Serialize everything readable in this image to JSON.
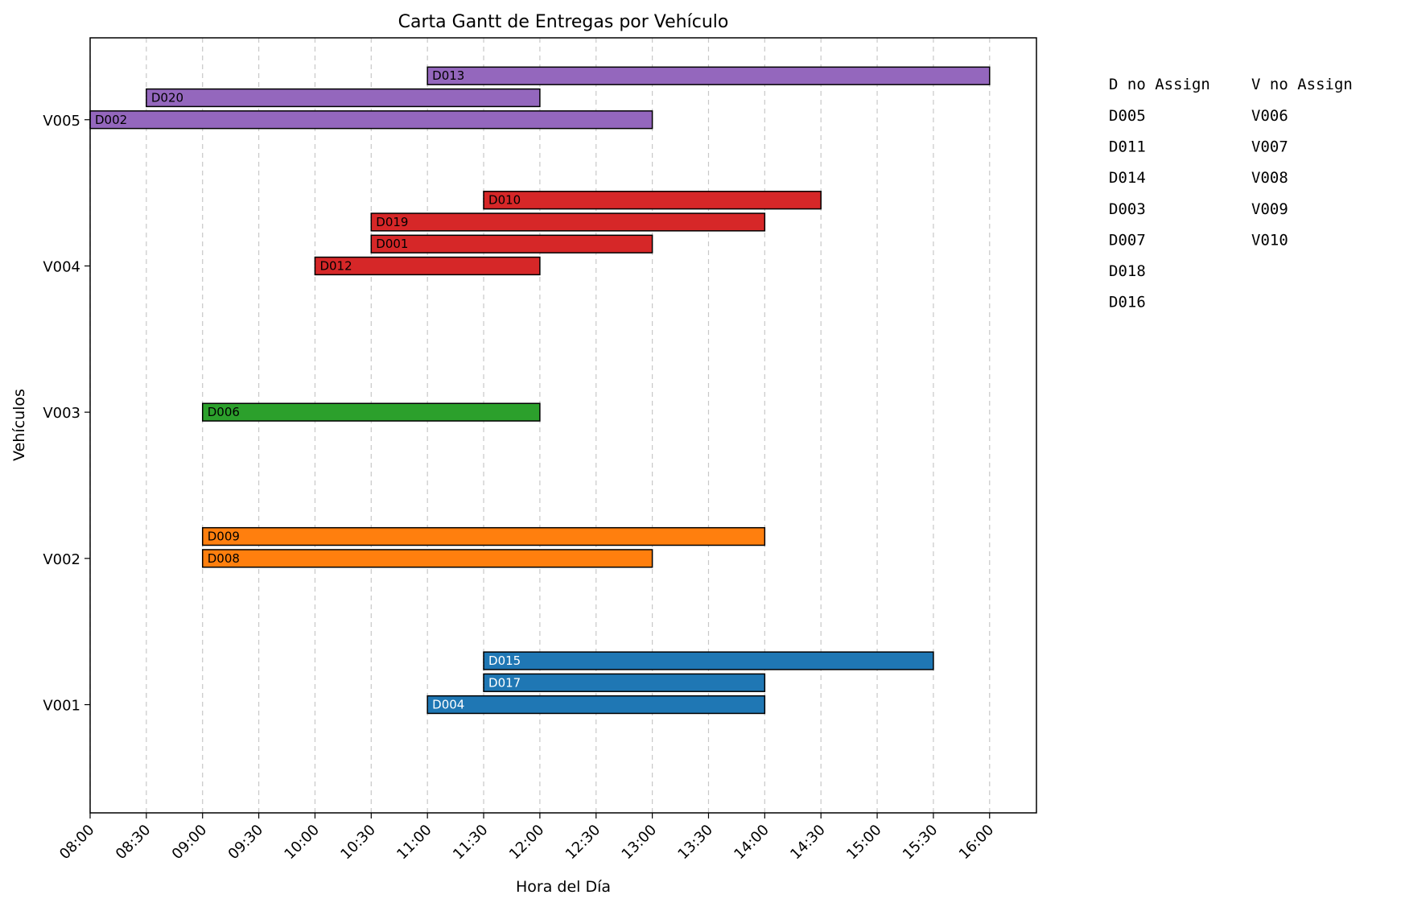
{
  "chart_data": {
    "type": "gantt",
    "title": "Carta Gantt de Entregas por Vehículo",
    "xlabel": "Hora del Día",
    "ylabel": "Vehículos",
    "x_ticks": [
      "08:00",
      "08:30",
      "09:00",
      "09:30",
      "10:00",
      "10:30",
      "11:00",
      "11:30",
      "12:00",
      "12:30",
      "13:00",
      "13:30",
      "14:00",
      "14:30",
      "15:00",
      "15:30",
      "16:00"
    ],
    "x_range": [
      "08:00",
      "16:25"
    ],
    "grid": "x-dashed",
    "vehicles": [
      {
        "name": "V001",
        "color": "#1f77b4",
        "label_color": "#ffffff",
        "deliveries": [
          {
            "id": "D004",
            "start": "11:00",
            "end": "14:00",
            "slot": 0
          },
          {
            "id": "D017",
            "start": "11:30",
            "end": "14:00",
            "slot": 1
          },
          {
            "id": "D015",
            "start": "11:30",
            "end": "15:30",
            "slot": 2
          }
        ]
      },
      {
        "name": "V002",
        "color": "#ff7f0e",
        "label_color": "#000000",
        "deliveries": [
          {
            "id": "D008",
            "start": "09:00",
            "end": "13:00",
            "slot": 0
          },
          {
            "id": "D009",
            "start": "09:00",
            "end": "14:00",
            "slot": 1
          }
        ]
      },
      {
        "name": "V003",
        "color": "#2ca02c",
        "label_color": "#000000",
        "deliveries": [
          {
            "id": "D006",
            "start": "09:00",
            "end": "12:00",
            "slot": 0
          }
        ]
      },
      {
        "name": "V004",
        "color": "#d62728",
        "label_color": "#000000",
        "deliveries": [
          {
            "id": "D012",
            "start": "10:00",
            "end": "12:00",
            "slot": 0
          },
          {
            "id": "D001",
            "start": "10:30",
            "end": "13:00",
            "slot": 1
          },
          {
            "id": "D019",
            "start": "10:30",
            "end": "14:00",
            "slot": 2
          },
          {
            "id": "D010",
            "start": "11:30",
            "end": "14:30",
            "slot": 3
          }
        ]
      },
      {
        "name": "V005",
        "color": "#9467bd",
        "label_color": "#000000",
        "deliveries": [
          {
            "id": "D002",
            "start": "08:00",
            "end": "13:00",
            "slot": 0
          },
          {
            "id": "D020",
            "start": "08:30",
            "end": "12:00",
            "slot": 1
          },
          {
            "id": "D013",
            "start": "11:00",
            "end": "16:00",
            "slot": 2
          }
        ]
      }
    ],
    "unassigned": {
      "deliveries_header": "D no Assign",
      "vehicles_header": "V no Assign",
      "deliveries": [
        "D005",
        "D011",
        "D014",
        "D003",
        "D007",
        "D018",
        "D016"
      ],
      "vehicles": [
        "V006",
        "V007",
        "V008",
        "V009",
        "V010"
      ]
    }
  }
}
